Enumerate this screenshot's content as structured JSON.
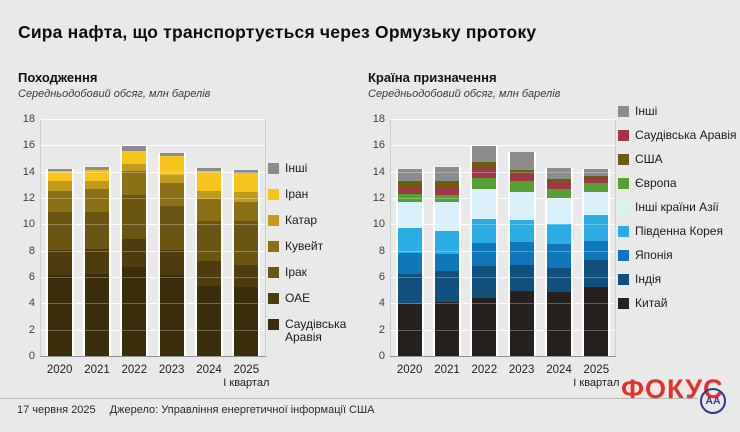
{
  "page": {
    "title": "Сира нафта, що транспортується через Ормузьку протоку"
  },
  "chart_data": [
    {
      "type": "bar",
      "stacked": true,
      "title": "Походження",
      "subtitle": "Середньодобовий обсяг, млн барелів",
      "categories": [
        "2020",
        "2021",
        "2022",
        "2023",
        "2024",
        "2025"
      ],
      "x_note": "І квартал",
      "ylim": [
        0,
        18
      ],
      "ytick_step": 2,
      "grid": true,
      "legend_position": "right",
      "series": [
        {
          "name": "Саудівська Аравія",
          "color": "#3a2d0b",
          "values": [
            6.2,
            6.3,
            6.8,
            6.2,
            5.4,
            5.3
          ]
        },
        {
          "name": "ОАЕ",
          "color": "#4d3d0e",
          "values": [
            1.9,
            1.9,
            2.2,
            1.95,
            1.9,
            1.7
          ]
        },
        {
          "name": "Ірак",
          "color": "#6a5512",
          "values": [
            2.9,
            2.8,
            3.3,
            3.3,
            3.0,
            3.3
          ]
        },
        {
          "name": "Кувейт",
          "color": "#8c7015",
          "values": [
            1.6,
            1.8,
            1.8,
            1.75,
            1.7,
            1.5
          ]
        },
        {
          "name": "Катар",
          "color": "#c09b1d",
          "values": [
            0.75,
            0.6,
            0.55,
            0.6,
            0.6,
            0.75
          ]
        },
        {
          "name": "Іран",
          "color": "#f5c51e",
          "values": [
            0.75,
            0.8,
            1.0,
            1.45,
            1.5,
            1.45
          ]
        },
        {
          "name": "Інші",
          "color": "#8c8c8c",
          "values": [
            0.2,
            0.2,
            0.35,
            0.25,
            0.25,
            0.2
          ]
        }
      ],
      "legend_order": [
        "Інші",
        "Іран",
        "Катар",
        "Кувейт",
        "Ірак",
        "ОАЕ",
        "Саудівська Аравія"
      ]
    },
    {
      "type": "bar",
      "stacked": true,
      "title": "Країна призначення",
      "subtitle": "Середньодобовий обсяг, млн барелів",
      "categories": [
        "2020",
        "2021",
        "2022",
        "2023",
        "2024",
        "2025"
      ],
      "x_note": "І квартал",
      "ylim": [
        0,
        18
      ],
      "ytick_step": 2,
      "grid": true,
      "legend_position": "right",
      "series": [
        {
          "name": "Китай",
          "color": "#26211e",
          "values": [
            4.0,
            4.2,
            4.5,
            5.0,
            4.9,
            5.35
          ]
        },
        {
          "name": "Індія",
          "color": "#11507d",
          "values": [
            2.3,
            2.3,
            2.4,
            2.0,
            1.85,
            2.0
          ]
        },
        {
          "name": "Японія",
          "color": "#0f77b8",
          "values": [
            1.6,
            1.35,
            1.75,
            1.7,
            1.85,
            1.45
          ]
        },
        {
          "name": "Південна Корея",
          "color": "#2bade4",
          "values": [
            1.9,
            1.75,
            1.85,
            1.7,
            1.5,
            1.95
          ]
        },
        {
          "name": "Інші країни Азії",
          "color": "#d9f0fb",
          "values": [
            2.0,
            2.15,
            2.3,
            2.1,
            2.0,
            1.75
          ]
        },
        {
          "name": "Європа",
          "color": "#56a033",
          "values": [
            0.55,
            0.55,
            0.8,
            0.9,
            0.7,
            0.7
          ]
        },
        {
          "name": "Саудівська Аравія",
          "color": "#a03744",
          "values": [
            0.6,
            0.6,
            0.8,
            0.55,
            0.5,
            0.45
          ]
        },
        {
          "name": "США",
          "color": "#6b5c10",
          "values": [
            0.45,
            0.5,
            0.45,
            0.25,
            0.25,
            0.1
          ]
        },
        {
          "name": "Інші",
          "color": "#8c8c8c",
          "values": [
            0.9,
            1.0,
            1.15,
            1.35,
            0.8,
            0.5
          ]
        }
      ],
      "legend_order": [
        "Інші",
        "Саудівська Аравія",
        "США",
        "Європа",
        "Інші країни Азії",
        "Південна Корея",
        "Японія",
        "Індія",
        "Китай"
      ]
    }
  ],
  "footer": {
    "date": "17 червня 2025",
    "source": "Джерело: Управління енергетичної інформації США"
  },
  "logos": {
    "focus_text": "ФОКУС",
    "focus_color": "#e4312b",
    "agency_text": "AA",
    "agency_color": "#2b3a92"
  }
}
